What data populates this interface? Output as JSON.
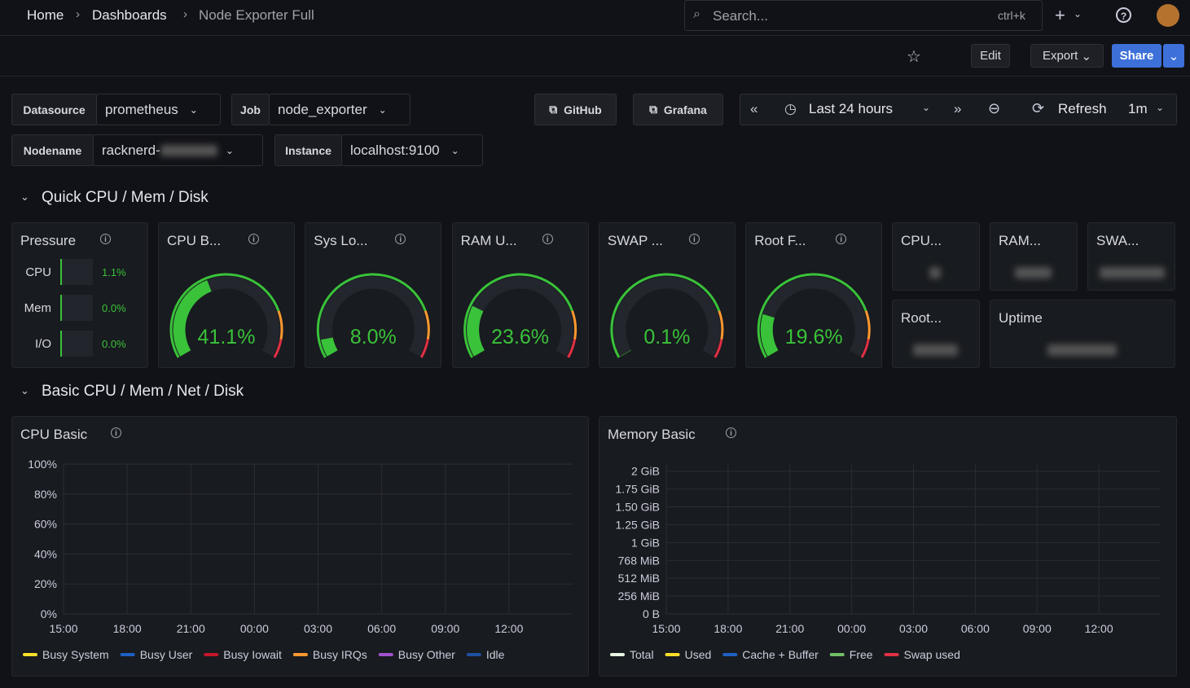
{
  "breadcrumb": [
    "Home",
    "Dashboards",
    "Node Exporter Full"
  ],
  "search": {
    "placeholder": "Search...",
    "shortcut": "ctrl+k"
  },
  "toolbar": {
    "edit": "Edit",
    "export": "Export",
    "share": "Share"
  },
  "variables": [
    {
      "label": "Datasource",
      "value": "prometheus"
    },
    {
      "label": "Job",
      "value": "node_exporter"
    },
    {
      "label": "Nodename",
      "value": "racknerd-"
    },
    {
      "label": "Instance",
      "value": "localhost:9100"
    }
  ],
  "links": [
    "GitHub",
    "Grafana"
  ],
  "time_picker": {
    "range": "Last 24 hours",
    "refresh": "Refresh",
    "interval": "1m"
  },
  "rows": [
    "Quick CPU / Mem / Disk",
    "Basic CPU / Mem / Net / Disk"
  ],
  "pressure": {
    "title": "Pressure",
    "items": [
      {
        "label": "CPU",
        "value": "1.1%"
      },
      {
        "label": "Mem",
        "value": "0.0%"
      },
      {
        "label": "I/O",
        "value": "0.0%"
      }
    ]
  },
  "gauge_range": [
    0,
    100
  ],
  "gauges": [
    {
      "title": "CPU B...",
      "value": 41.1,
      "label": "41.1%"
    },
    {
      "title": "Sys Lo...",
      "value": 8.0,
      "label": "8.0%"
    },
    {
      "title": "RAM U...",
      "value": 23.6,
      "label": "23.6%"
    },
    {
      "title": "SWAP ...",
      "value": 0.1,
      "label": "0.1%"
    },
    {
      "title": "Root F...",
      "value": 19.6,
      "label": "19.6%"
    }
  ],
  "stats": [
    "CPU...",
    "RAM...",
    "SWA...",
    "Root...",
    "Uptime"
  ],
  "charts": [
    {
      "type": "line",
      "title": "CPU Basic",
      "ylim": [
        0,
        100
      ],
      "yticks": [
        {
          "value": 0,
          "label": "0%"
        },
        {
          "value": 20,
          "label": "20%"
        },
        {
          "value": 40,
          "label": "40%"
        },
        {
          "value": 60,
          "label": "60%"
        },
        {
          "value": 80,
          "label": "80%"
        },
        {
          "value": 100,
          "label": "100%"
        }
      ],
      "xticks": [
        "15:00",
        "18:00",
        "21:00",
        "00:00",
        "03:00",
        "06:00",
        "09:00",
        "12:00"
      ],
      "series": [
        {
          "name": "Busy System",
          "color": "#fade2a"
        },
        {
          "name": "Busy User",
          "color": "#1f60c4"
        },
        {
          "name": "Busy Iowait",
          "color": "#c4162a"
        },
        {
          "name": "Busy IRQs",
          "color": "#ff9830"
        },
        {
          "name": "Busy Other",
          "color": "#a352cc"
        },
        {
          "name": "Idle",
          "color": "#1f4fa0"
        }
      ]
    },
    {
      "type": "line",
      "title": "Memory Basic",
      "ylim": [
        0,
        2150
      ],
      "yticks": [
        {
          "value": 0,
          "label": "0 B"
        },
        {
          "value": 256,
          "label": "256 MiB"
        },
        {
          "value": 512,
          "label": "512 MiB"
        },
        {
          "value": 768,
          "label": "768 MiB"
        },
        {
          "value": 1024,
          "label": "1 GiB"
        },
        {
          "value": 1280,
          "label": "1.25 GiB"
        },
        {
          "value": 1536,
          "label": "1.50 GiB"
        },
        {
          "value": 1792,
          "label": "1.75 GiB"
        },
        {
          "value": 2048,
          "label": "2 GiB"
        }
      ],
      "xticks": [
        "15:00",
        "18:00",
        "21:00",
        "00:00",
        "03:00",
        "06:00",
        "09:00",
        "12:00"
      ],
      "series": [
        {
          "name": "Total",
          "color": "#e8f5e0"
        },
        {
          "name": "Used",
          "color": "#fade2a"
        },
        {
          "name": "Cache + Buffer",
          "color": "#1f60c4"
        },
        {
          "name": "Free",
          "color": "#73bf69"
        },
        {
          "name": "Swap used",
          "color": "#e02f44"
        }
      ]
    }
  ]
}
